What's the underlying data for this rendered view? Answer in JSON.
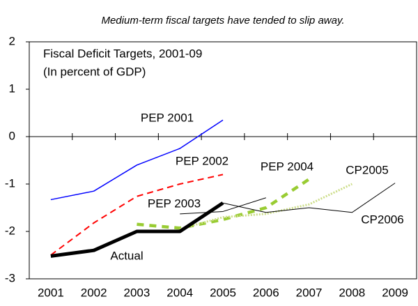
{
  "chart_data": {
    "type": "line",
    "title": "Medium-term fiscal targets have tended to slip away.",
    "annotations": [
      "Fiscal Deficit Targets, 2001-09",
      "(In percent of GDP)"
    ],
    "categories": [
      "2001",
      "2002",
      "2003",
      "2004",
      "2005",
      "2006",
      "2007",
      "2008",
      "2009"
    ],
    "series": [
      {
        "name": "PEP 2001",
        "color": "#0000ff",
        "values": [
          -1.33,
          -1.15,
          -0.6,
          -0.25,
          0.35,
          null,
          null,
          null,
          null
        ]
      },
      {
        "name": "PEP 2002",
        "color": "#ff0000",
        "values": [
          -2.5,
          -1.82,
          -1.26,
          -1.0,
          -0.8,
          null,
          null,
          null,
          null
        ]
      },
      {
        "name": "PEP 2003",
        "color": "#000000",
        "values": [
          null,
          null,
          null,
          -1.63,
          -1.58,
          -1.29,
          null,
          null,
          null
        ]
      },
      {
        "name": "PEP 2004",
        "color": "#99cc33",
        "values": [
          null,
          null,
          -1.85,
          -1.93,
          -1.75,
          -1.5,
          -0.9,
          null,
          null
        ]
      },
      {
        "name": "CP2005",
        "color": "#ccdd88",
        "values": [
          null,
          null,
          null,
          -1.95,
          -1.7,
          -1.63,
          -1.43,
          -1.0,
          null
        ]
      },
      {
        "name": "CP2006",
        "color": "#000000",
        "values": [
          null,
          null,
          null,
          null,
          -1.4,
          -1.6,
          -1.5,
          -1.6,
          -0.98
        ]
      },
      {
        "name": "Actual",
        "color": "#000000",
        "values": [
          -2.52,
          -2.4,
          -2.0,
          -2.0,
          -1.4,
          null,
          null,
          null,
          null
        ]
      }
    ],
    "ylim": [
      -3,
      2
    ],
    "yticks": [
      -3,
      -2,
      -1,
      0,
      1,
      2
    ],
    "grid": false
  }
}
